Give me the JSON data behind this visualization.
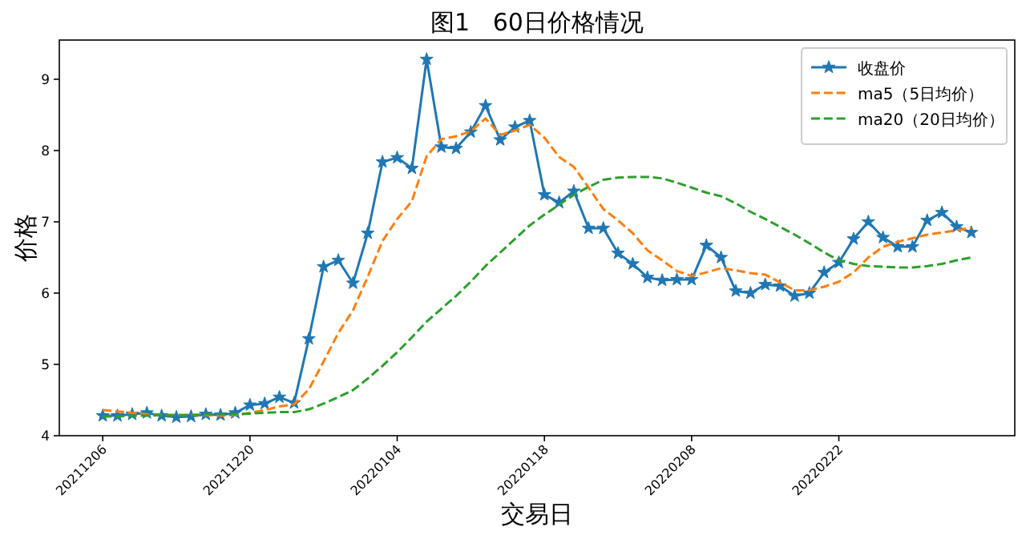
{
  "chart_data": {
    "type": "line",
    "title": "图1   60日价格情况",
    "xlabel": "交易日",
    "ylabel": "价格",
    "categories": [
      "20211206",
      null,
      null,
      null,
      null,
      null,
      null,
      null,
      null,
      null,
      "20211220",
      null,
      null,
      null,
      null,
      null,
      null,
      null,
      null,
      null,
      "20220104",
      null,
      null,
      null,
      null,
      null,
      null,
      null,
      null,
      null,
      "20220118",
      null,
      null,
      null,
      null,
      null,
      null,
      null,
      null,
      null,
      "20220208",
      null,
      null,
      null,
      null,
      null,
      null,
      null,
      null,
      null,
      "20220222",
      null,
      null,
      null,
      null,
      null,
      null,
      null,
      null,
      null
    ],
    "series": [
      {
        "name": "收盘价",
        "color": "#1f77b4",
        "marker": "star",
        "line_style": "solid",
        "values": [
          4.28,
          4.28,
          4.3,
          4.32,
          4.28,
          4.26,
          4.27,
          4.3,
          4.29,
          4.32,
          4.43,
          4.45,
          4.54,
          4.46,
          5.36,
          6.37,
          6.46,
          6.14,
          6.84,
          7.84,
          7.9,
          7.75,
          9.28,
          8.05,
          8.03,
          8.26,
          8.63,
          8.15,
          8.33,
          8.42,
          7.38,
          7.27,
          7.43,
          6.91,
          6.91,
          6.56,
          6.41,
          6.22,
          6.18,
          6.19,
          6.19,
          6.67,
          6.5,
          6.03,
          6.0,
          6.12,
          6.1,
          5.96,
          6.0,
          6.29,
          6.43,
          6.76,
          7.0,
          6.78,
          6.65,
          6.65,
          7.02,
          7.13,
          6.93,
          6.85
        ]
      },
      {
        "name": "ma5（5日均价）",
        "color": "#ff7f0e",
        "line_style": "dashed",
        "values": [
          4.36,
          4.34,
          4.32,
          4.3,
          4.29,
          4.29,
          4.29,
          4.29,
          4.28,
          4.29,
          4.32,
          4.36,
          4.41,
          4.44,
          4.65,
          5.04,
          5.44,
          5.76,
          6.23,
          6.73,
          7.04,
          7.29,
          7.92,
          8.16,
          8.2,
          8.27,
          8.45,
          8.22,
          8.28,
          8.36,
          8.18,
          7.91,
          7.77,
          7.48,
          7.18,
          7.02,
          6.84,
          6.6,
          6.46,
          6.31,
          6.24,
          6.29,
          6.35,
          6.32,
          6.28,
          6.26,
          6.15,
          6.04,
          6.04,
          6.09,
          6.16,
          6.29,
          6.5,
          6.65,
          6.72,
          6.77,
          6.82,
          6.85,
          6.88,
          6.92
        ]
      },
      {
        "name": "ma20（20日均价）",
        "color": "#2ca02c",
        "line_style": "dashed",
        "values": [
          4.27,
          4.27,
          4.28,
          4.28,
          4.29,
          4.29,
          4.29,
          4.3,
          4.3,
          4.3,
          4.31,
          4.32,
          4.33,
          4.33,
          4.37,
          4.45,
          4.54,
          4.64,
          4.8,
          4.98,
          5.17,
          5.38,
          5.6,
          5.78,
          5.96,
          6.16,
          6.38,
          6.57,
          6.76,
          6.95,
          7.1,
          7.24,
          7.38,
          7.49,
          7.59,
          7.62,
          7.63,
          7.63,
          7.61,
          7.55,
          7.48,
          7.41,
          7.36,
          7.26,
          7.14,
          7.04,
          6.93,
          6.82,
          6.7,
          6.57,
          6.46,
          6.41,
          6.38,
          6.37,
          6.36,
          6.36,
          6.38,
          6.41,
          6.46,
          6.5
        ]
      }
    ],
    "ylim": [
      4,
      9.55
    ],
    "yticks": [
      4,
      5,
      6,
      7,
      8,
      9
    ],
    "legend": "top right",
    "grid": false
  }
}
